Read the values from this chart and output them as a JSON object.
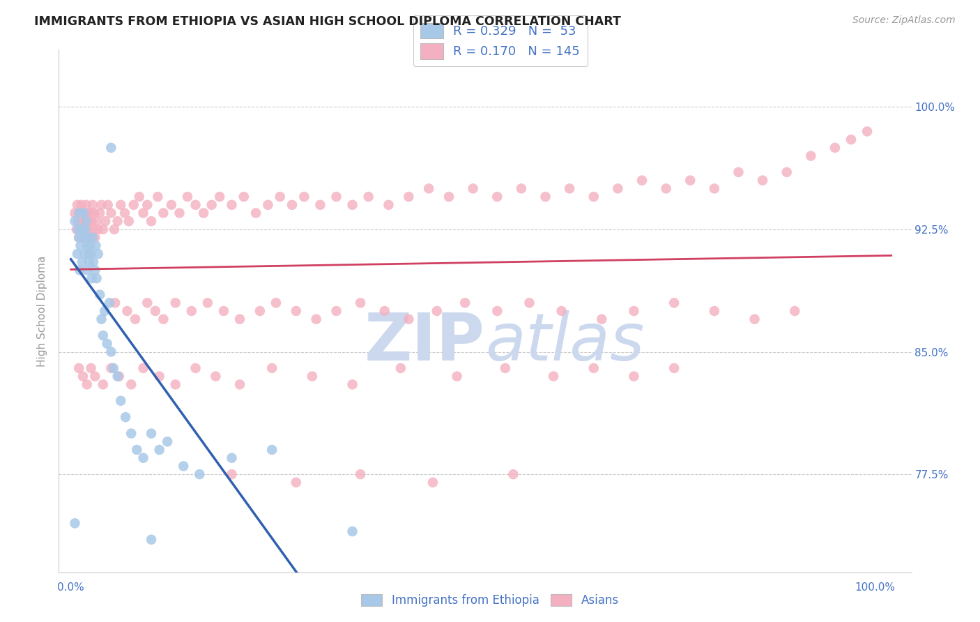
{
  "title": "IMMIGRANTS FROM ETHIOPIA VS ASIAN HIGH SCHOOL DIPLOMA CORRELATION CHART",
  "source": "Source: ZipAtlas.com",
  "ylabel": "High School Diploma",
  "yaxis_labels": [
    "77.5%",
    "85.0%",
    "92.5%",
    "100.0%"
  ],
  "yaxis_values": [
    0.775,
    0.85,
    0.925,
    1.0
  ],
  "ylim": [
    0.715,
    1.035
  ],
  "xlim": [
    -0.015,
    1.045
  ],
  "legend_r_blue": "R = 0.329",
  "legend_n_blue": "N =  53",
  "legend_r_pink": "R = 0.170",
  "legend_n_pink": "N = 145",
  "blue_color": "#a8c8e8",
  "pink_color": "#f4b0c0",
  "blue_line_color": "#3060b0",
  "pink_line_color": "#d04060",
  "axis_label_color": "#4472c4",
  "watermark_color": "#ccd8ee",
  "background_color": "#ffffff",
  "blue_scatter_x": [
    0.005,
    0.008,
    0.009,
    0.01,
    0.01,
    0.011,
    0.012,
    0.013,
    0.014,
    0.015,
    0.016,
    0.017,
    0.018,
    0.019,
    0.02,
    0.02,
    0.021,
    0.022,
    0.023,
    0.024,
    0.025,
    0.026,
    0.027,
    0.028,
    0.03,
    0.031,
    0.032,
    0.034,
    0.036,
    0.038,
    0.04,
    0.042,
    0.045,
    0.048,
    0.05,
    0.053,
    0.058,
    0.062,
    0.068,
    0.075,
    0.082,
    0.09,
    0.1,
    0.11,
    0.12,
    0.14,
    0.16,
    0.2,
    0.25,
    0.05,
    0.005,
    0.1,
    0.35
  ],
  "blue_scatter_y": [
    0.93,
    0.91,
    0.925,
    0.935,
    0.92,
    0.9,
    0.915,
    0.925,
    0.905,
    0.92,
    0.935,
    0.91,
    0.925,
    0.93,
    0.915,
    0.9,
    0.92,
    0.91,
    0.905,
    0.915,
    0.91,
    0.895,
    0.92,
    0.905,
    0.9,
    0.915,
    0.895,
    0.91,
    0.885,
    0.87,
    0.86,
    0.875,
    0.855,
    0.88,
    0.85,
    0.84,
    0.835,
    0.82,
    0.81,
    0.8,
    0.79,
    0.785,
    0.8,
    0.79,
    0.795,
    0.78,
    0.775,
    0.785,
    0.79,
    0.975,
    0.745,
    0.735,
    0.74
  ],
  "pink_scatter_x": [
    0.005,
    0.007,
    0.008,
    0.009,
    0.01,
    0.011,
    0.012,
    0.013,
    0.014,
    0.015,
    0.016,
    0.017,
    0.018,
    0.019,
    0.02,
    0.021,
    0.022,
    0.023,
    0.024,
    0.025,
    0.026,
    0.027,
    0.028,
    0.029,
    0.03,
    0.032,
    0.034,
    0.036,
    0.038,
    0.04,
    0.043,
    0.046,
    0.05,
    0.054,
    0.058,
    0.062,
    0.067,
    0.072,
    0.078,
    0.085,
    0.09,
    0.095,
    0.1,
    0.108,
    0.115,
    0.125,
    0.135,
    0.145,
    0.155,
    0.165,
    0.175,
    0.185,
    0.2,
    0.215,
    0.23,
    0.245,
    0.26,
    0.275,
    0.29,
    0.31,
    0.33,
    0.35,
    0.37,
    0.395,
    0.42,
    0.445,
    0.47,
    0.5,
    0.53,
    0.56,
    0.59,
    0.62,
    0.65,
    0.68,
    0.71,
    0.74,
    0.77,
    0.8,
    0.83,
    0.86,
    0.89,
    0.92,
    0.95,
    0.97,
    0.99,
    0.055,
    0.07,
    0.08,
    0.095,
    0.105,
    0.115,
    0.13,
    0.15,
    0.17,
    0.19,
    0.21,
    0.235,
    0.255,
    0.28,
    0.305,
    0.33,
    0.36,
    0.39,
    0.42,
    0.455,
    0.49,
    0.53,
    0.57,
    0.61,
    0.66,
    0.7,
    0.75,
    0.8,
    0.85,
    0.9,
    0.01,
    0.015,
    0.02,
    0.025,
    0.03,
    0.04,
    0.05,
    0.06,
    0.075,
    0.09,
    0.11,
    0.13,
    0.155,
    0.18,
    0.21,
    0.25,
    0.3,
    0.35,
    0.41,
    0.48,
    0.54,
    0.6,
    0.65,
    0.7,
    0.75,
    0.2,
    0.28,
    0.36,
    0.45,
    0.55
  ],
  "pink_scatter_y": [
    0.935,
    0.925,
    0.94,
    0.93,
    0.92,
    0.935,
    0.925,
    0.94,
    0.93,
    0.92,
    0.935,
    0.925,
    0.93,
    0.94,
    0.92,
    0.935,
    0.925,
    0.93,
    0.92,
    0.935,
    0.93,
    0.94,
    0.925,
    0.935,
    0.92,
    0.93,
    0.925,
    0.935,
    0.94,
    0.925,
    0.93,
    0.94,
    0.935,
    0.925,
    0.93,
    0.94,
    0.935,
    0.93,
    0.94,
    0.945,
    0.935,
    0.94,
    0.93,
    0.945,
    0.935,
    0.94,
    0.935,
    0.945,
    0.94,
    0.935,
    0.94,
    0.945,
    0.94,
    0.945,
    0.935,
    0.94,
    0.945,
    0.94,
    0.945,
    0.94,
    0.945,
    0.94,
    0.945,
    0.94,
    0.945,
    0.95,
    0.945,
    0.95,
    0.945,
    0.95,
    0.945,
    0.95,
    0.945,
    0.95,
    0.955,
    0.95,
    0.955,
    0.95,
    0.96,
    0.955,
    0.96,
    0.97,
    0.975,
    0.98,
    0.985,
    0.88,
    0.875,
    0.87,
    0.88,
    0.875,
    0.87,
    0.88,
    0.875,
    0.88,
    0.875,
    0.87,
    0.875,
    0.88,
    0.875,
    0.87,
    0.875,
    0.88,
    0.875,
    0.87,
    0.875,
    0.88,
    0.875,
    0.88,
    0.875,
    0.87,
    0.875,
    0.88,
    0.875,
    0.87,
    0.875,
    0.84,
    0.835,
    0.83,
    0.84,
    0.835,
    0.83,
    0.84,
    0.835,
    0.83,
    0.84,
    0.835,
    0.83,
    0.84,
    0.835,
    0.83,
    0.84,
    0.835,
    0.83,
    0.84,
    0.835,
    0.84,
    0.835,
    0.84,
    0.835,
    0.84,
    0.775,
    0.77,
    0.775,
    0.77,
    0.775
  ]
}
